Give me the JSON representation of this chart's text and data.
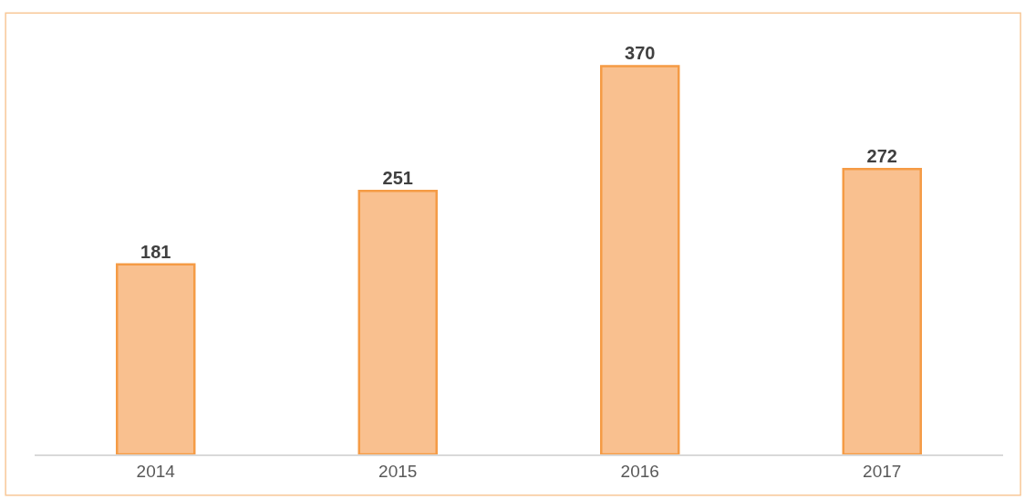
{
  "chart_data": {
    "type": "bar",
    "categories": [
      "2014",
      "2015",
      "2016",
      "2017"
    ],
    "values": [
      181,
      251,
      370,
      272
    ],
    "color": "#f9c08f",
    "data_labels": true
  }
}
